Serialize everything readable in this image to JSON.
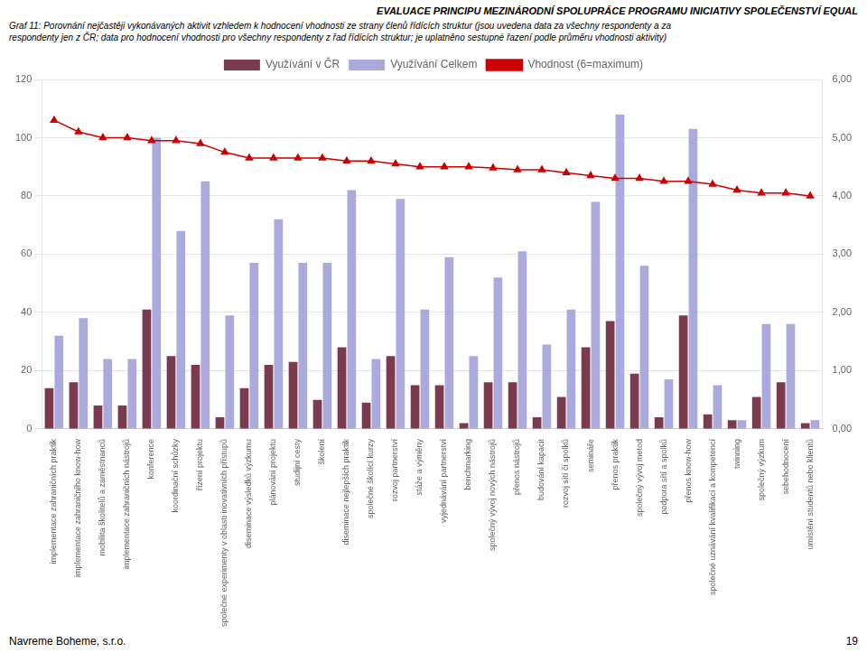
{
  "chart_data": {
    "type": "bar",
    "title": "EVALUACE PRINCIPU MEZINÁRODNÍ SPOLUPRÁCE PROGRAMU INICIATIVY SPOLEČENSTVÍ EQUAL",
    "subtitle": [
      "Graf 11: Porovnání nejčastěji vykonávaných aktivit vzhledem k hodnocení vhodnosti ze strany členů řídících struktur (jsou uvedena data za všechny respondenty a za",
      "respondenty jen z ČR; data pro hodnocení vhodnosti pro všechny respondenty z řad řídících struktur; je uplatněno sestupné řazení podle průměru vhodnosti aktivity)"
    ],
    "annotations": [
      "Navreme Boheme, s.r.o.",
      "19"
    ],
    "categories": [
      "implementace zahraničních praktik",
      "implementace zahraničního know-how",
      "mobilita školitelů a zaměstnanců",
      "implementace zahraničních nástrojů",
      "konference",
      "koordinační schůzky",
      "řízení projektu",
      "společné experimenty v oblasti inovativních přístupů",
      "diseminace výsledků výzkumu",
      "plánování projektu",
      "studijní cesty",
      "školení",
      "diseminace nejlepších praktik",
      "společné školící kurzy",
      "rozvoj partnerství",
      "stáže a výměny",
      "vyjednávání partnerství",
      "benchmarking",
      "společný vývoj nových nástrojů",
      "přenos nástrojů",
      "budování kapacit",
      "rozvoj sítí či spolků",
      "semináře",
      "přenos praktik",
      "společný vývoj metod",
      "podpora sítí a spolků",
      "přenos know-how",
      "společné uznávání kvalifikací a kompetencí",
      "twinning",
      "společný výzkum",
      "sebehodnocení",
      "umístění studentů nebo klientů"
    ],
    "series": [
      {
        "name": "Využívání v ČR",
        "type": "bar",
        "color": "#7B3B4E",
        "values": [
          14,
          16,
          8,
          8,
          41,
          25,
          22,
          4,
          14,
          22,
          23,
          10,
          28,
          9,
          25,
          15,
          15,
          2,
          16,
          16,
          4,
          11,
          28,
          37,
          19,
          4,
          39,
          5,
          3,
          11,
          16,
          2
        ]
      },
      {
        "name": "Využívání Celkem",
        "type": "bar",
        "color": "#AAAADD",
        "values": [
          32,
          38,
          24,
          24,
          100,
          68,
          85,
          39,
          57,
          72,
          57,
          57,
          82,
          24,
          79,
          41,
          59,
          25,
          52,
          61,
          29,
          41,
          78,
          108,
          56,
          17,
          103,
          15,
          3,
          36,
          36,
          3
        ]
      },
      {
        "name": "Vhodnost (6=maximum)",
        "type": "line",
        "axis": "y2",
        "color": "#CC0000",
        "marker": "triangle",
        "values": [
          5.3,
          5.1,
          5.0,
          5.0,
          4.95,
          4.95,
          4.9,
          4.75,
          4.65,
          4.65,
          4.65,
          4.65,
          4.6,
          4.6,
          4.55,
          4.5,
          4.5,
          4.5,
          4.48,
          4.45,
          4.45,
          4.4,
          4.35,
          4.3,
          4.3,
          4.25,
          4.25,
          4.2,
          4.1,
          4.05,
          4.05,
          4.0
        ]
      }
    ],
    "ylim": [
      0,
      120
    ],
    "yticks": [
      0,
      20,
      40,
      60,
      80,
      100,
      120
    ],
    "y2lim": [
      0,
      6.0
    ],
    "y2ticks": [
      {
        "value": 0,
        "label": "0,00"
      },
      {
        "value": 1,
        "label": "1,00"
      },
      {
        "value": 2,
        "label": "2,00"
      },
      {
        "value": 3,
        "label": "3,00"
      },
      {
        "value": 4,
        "label": "4,00"
      },
      {
        "value": 5,
        "label": "5,00"
      },
      {
        "value": 6,
        "label": "6,00"
      }
    ],
    "grid": true,
    "legend": "top"
  }
}
